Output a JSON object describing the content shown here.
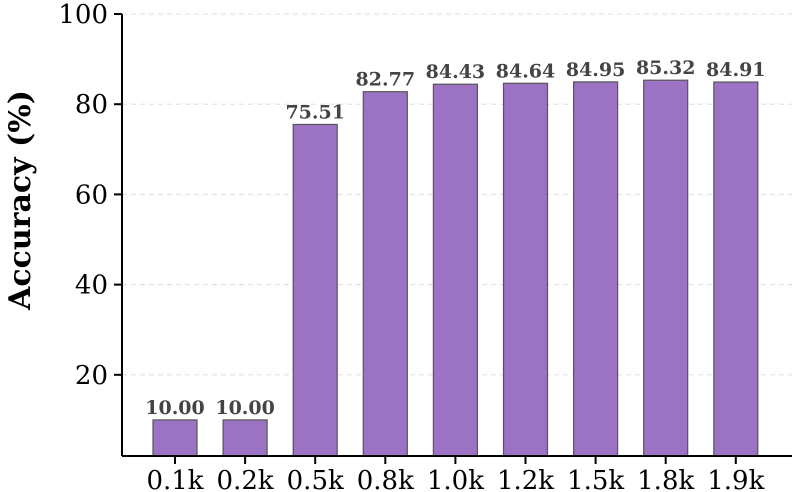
{
  "chart_data": {
    "type": "bar",
    "categories": [
      "0.1k",
      "0.2k",
      "0.5k",
      "0.8k",
      "1.0k",
      "1.2k",
      "1.5k",
      "1.8k",
      "1.9k"
    ],
    "values": [
      10.0,
      10.0,
      75.51,
      82.77,
      84.43,
      84.64,
      84.95,
      85.32,
      84.91
    ],
    "value_labels": [
      "10.00",
      "10.00",
      "75.51",
      "82.77",
      "84.43",
      "84.64",
      "84.95",
      "85.32",
      "84.91"
    ],
    "title": "",
    "xlabel": "",
    "ylabel": "Accuracy (%)",
    "ylim": [
      2,
      100
    ],
    "yticks": [
      20,
      40,
      60,
      80,
      100
    ],
    "ytick_labels": [
      "20",
      "40",
      "60",
      "80",
      "100"
    ],
    "grid": "horizontal dashed",
    "legend": "none",
    "colors": {
      "bar_fill": "#9b72c4",
      "bar_edge": "#555555",
      "grid": "#dddddd",
      "axis": "#000000",
      "data_label": "#444444"
    }
  }
}
